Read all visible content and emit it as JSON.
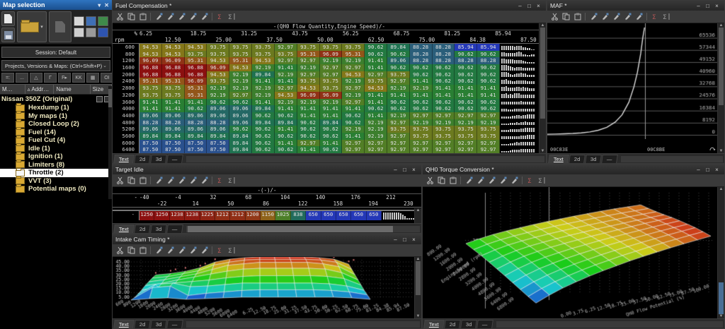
{
  "sidebar": {
    "title": "Map selection",
    "session": "Session: Default",
    "dropdown": "Projects, Versions & Maps:  (Ctrl+Shift+P)",
    "mini_buttons": [
      "=:",
      "...",
      "△",
      "Γ",
      "F▸",
      "KK",
      "▦",
      "OI"
    ],
    "columns": [
      "M…",
      "▵ Addr…",
      "Name",
      "Size"
    ],
    "tree_root": "Nissan 350Z (Original)",
    "tree_items": [
      {
        "label": "Hexdump (1)",
        "selected": false
      },
      {
        "label": "My maps (1)",
        "selected": false
      },
      {
        "label": "Closed Loop (2)",
        "selected": false
      },
      {
        "label": "Fuel (14)",
        "selected": false
      },
      {
        "label": "Fuel Cut (4)",
        "selected": false
      },
      {
        "label": "Idle (1)",
        "selected": false
      },
      {
        "label": "Ignition (1)",
        "selected": false
      },
      {
        "label": "Limiters (8)",
        "selected": false
      },
      {
        "label": "Throttle (2)",
        "selected": true
      },
      {
        "label": "VVT (3)",
        "selected": false
      },
      {
        "label": "Potential maps (0)",
        "selected": false
      }
    ]
  },
  "common": {
    "tabs": [
      "Text",
      "2d",
      "3d",
      "—"
    ],
    "window_controls": [
      "–",
      "□",
      "×"
    ],
    "toolbar_icons": [
      "cut-icon",
      "copy-icon",
      "paste-icon",
      "edit-pencil-1-icon",
      "edit-pencil-2-icon",
      "edit-pencil-3-icon",
      "edit-pencil-4-icon",
      "edit-pencil-5-icon",
      "sum-red-icon",
      "sum-icon"
    ]
  },
  "windows": {
    "fuel": {
      "title": "Fuel Compensation *"
    },
    "maf": {
      "title": "MAF *"
    },
    "idle": {
      "title": "Target Idle"
    },
    "cam": {
      "title": "Intake Cam Timing *"
    },
    "torque": {
      "title": "QH0 Torque Conversion *"
    }
  },
  "heat_stops": [
    [
      0,
      "#2438b8"
    ],
    [
      0.1,
      "#2a4a9a"
    ],
    [
      0.22,
      "#2a5f78"
    ],
    [
      0.34,
      "#1f7055"
    ],
    [
      0.48,
      "#237f35"
    ],
    [
      0.62,
      "#4a7f28"
    ],
    [
      0.72,
      "#6e7a1e"
    ],
    [
      0.8,
      "#8a7618"
    ],
    [
      0.88,
      "#95491a"
    ],
    [
      1,
      "#8c1010"
    ]
  ],
  "chart_data": [
    {
      "type": "heatmap",
      "title": "Fuel Compensation",
      "axis_title": "-(QH0 Flow Quantity,Engine Speed)/-",
      "unit_top": "%",
      "unit_bottom": "rpm",
      "cols": [
        "6.25",
        "12.50",
        "18.75",
        "25.00",
        "31.25",
        "37.50",
        "43.75",
        "50.00",
        "56.25",
        "62.50",
        "68.75",
        "75.00",
        "81.25",
        "84.38",
        "85.94",
        "87.50"
      ],
      "rows": [
        "600",
        "800",
        "1200",
        "1600",
        "2000",
        "2400",
        "2800",
        "3200",
        "3600",
        "4000",
        "4400",
        "4800",
        "5200",
        "5600",
        "6000",
        "6400"
      ],
      "vmin": 85.94,
      "vmax": 96.88,
      "values": [
        [
          94.53,
          94.53,
          94.53,
          93.75,
          93.75,
          93.75,
          92.97,
          93.75,
          93.75,
          93.75,
          90.62,
          89.84,
          88.28,
          88.28,
          85.94,
          85.94
        ],
        [
          94.53,
          94.53,
          93.75,
          93.75,
          93.75,
          93.75,
          93.75,
          95.31,
          96.09,
          95.31,
          90.62,
          90.62,
          88.28,
          88.28,
          90.62,
          90.62
        ],
        [
          96.09,
          96.09,
          95.31,
          94.53,
          95.31,
          94.53,
          92.97,
          92.97,
          92.19,
          92.19,
          91.41,
          89.06,
          88.28,
          88.28,
          88.28,
          88.28
        ],
        [
          96.88,
          96.88,
          96.88,
          96.09,
          94.53,
          92.19,
          91.41,
          92.19,
          92.97,
          92.97,
          91.41,
          90.62,
          90.62,
          90.62,
          90.62,
          90.62
        ],
        [
          96.88,
          96.88,
          96.88,
          94.53,
          92.19,
          89.84,
          92.19,
          92.97,
          92.97,
          94.53,
          92.97,
          93.75,
          90.62,
          90.62,
          90.62,
          90.62
        ],
        [
          95.31,
          95.31,
          96.09,
          93.75,
          92.19,
          91.41,
          91.41,
          93.75,
          93.75,
          92.19,
          93.75,
          92.97,
          91.41,
          90.62,
          90.62,
          90.62
        ],
        [
          93.75,
          93.75,
          95.31,
          92.19,
          92.19,
          92.19,
          92.97,
          94.53,
          93.75,
          92.97,
          94.53,
          92.19,
          92.19,
          91.41,
          91.41,
          91.41
        ],
        [
          93.75,
          93.75,
          95.31,
          92.19,
          92.97,
          92.19,
          94.53,
          96.09,
          96.09,
          92.19,
          91.41,
          91.41,
          91.41,
          91.41,
          91.41,
          91.41
        ],
        [
          91.41,
          91.41,
          91.41,
          90.62,
          90.62,
          91.41,
          92.19,
          92.19,
          92.19,
          92.97,
          91.41,
          90.62,
          90.62,
          90.62,
          90.62,
          90.62
        ],
        [
          91.41,
          91.41,
          90.62,
          89.06,
          89.06,
          89.84,
          91.41,
          91.41,
          91.41,
          91.41,
          90.62,
          90.62,
          90.62,
          90.62,
          90.62,
          90.62
        ],
        [
          89.06,
          89.06,
          89.06,
          89.06,
          89.06,
          90.62,
          90.62,
          91.41,
          91.41,
          90.62,
          91.41,
          92.19,
          92.97,
          92.97,
          92.97,
          92.97
        ],
        [
          88.28,
          88.28,
          88.28,
          88.28,
          89.06,
          89.84,
          89.84,
          90.62,
          89.84,
          90.62,
          92.19,
          92.97,
          92.19,
          92.19,
          92.19,
          92.19
        ],
        [
          89.06,
          89.06,
          89.06,
          89.06,
          90.62,
          90.62,
          91.41,
          90.62,
          90.62,
          92.19,
          92.19,
          93.75,
          93.75,
          93.75,
          93.75,
          93.75
        ],
        [
          89.84,
          89.84,
          89.84,
          89.84,
          89.84,
          90.62,
          90.62,
          90.62,
          90.62,
          91.41,
          92.19,
          92.97,
          93.75,
          93.75,
          93.75,
          93.75
        ],
        [
          87.5,
          87.5,
          87.5,
          87.5,
          89.84,
          90.62,
          91.41,
          92.97,
          91.41,
          92.97,
          92.97,
          92.97,
          92.97,
          92.97,
          92.97,
          92.97
        ],
        [
          87.5,
          87.5,
          87.5,
          87.5,
          89.84,
          90.62,
          90.62,
          91.41,
          90.62,
          92.97,
          92.97,
          92.97,
          92.97,
          92.97,
          92.97,
          92.97
        ]
      ]
    },
    {
      "type": "line",
      "title": "MAF",
      "y_ticks": [
        0,
        8192,
        16384,
        24576,
        32768,
        40960,
        49152,
        57344,
        65536
      ],
      "y_top": 72500,
      "x_labels": [
        "00C83E",
        "00C8BE"
      ],
      "cursor_x": 0.575,
      "points": [
        [
          0,
          400
        ],
        [
          0.05,
          520
        ],
        [
          0.1,
          680
        ],
        [
          0.15,
          920
        ],
        [
          0.2,
          1300
        ],
        [
          0.25,
          1950
        ],
        [
          0.3,
          3100
        ],
        [
          0.35,
          5100
        ],
        [
          0.4,
          8600
        ],
        [
          0.44,
          13500
        ],
        [
          0.48,
          22000
        ],
        [
          0.51,
          32500
        ],
        [
          0.53,
          42000
        ],
        [
          0.55,
          55000
        ],
        [
          0.562,
          65536
        ],
        [
          0.572,
          72500
        ]
      ]
    },
    {
      "type": "table",
      "title": "Target Idle",
      "axis_title": "-(-)/-",
      "unit": "-",
      "row_label": "-",
      "cols": [
        "-40",
        "-22",
        "-4",
        "14",
        "32",
        "50",
        "68",
        "86",
        "104",
        "122",
        "140",
        "158",
        "176",
        "194",
        "212",
        "230"
      ],
      "vmin": 650,
      "vmax": 1250,
      "values": [
        1250,
        1250,
        1238,
        1238,
        1225,
        1212,
        1212,
        1200,
        1150,
        1025,
        838,
        650,
        650,
        650,
        650,
        650
      ]
    },
    {
      "type": "surface",
      "title": "Intake Cam Timing",
      "z_ticks": [
        "45.00",
        "40.00",
        "35.00",
        "30.00",
        "25.00",
        "20.00",
        "15.00",
        "10.00",
        "5.00"
      ],
      "x_tick_labels": [
        "600",
        "800",
        "1200",
        "1600",
        "2000",
        "2400",
        "2800",
        "3200",
        "3600",
        "4000",
        "4400",
        "4800",
        "5200",
        "5600",
        "6000",
        "6400"
      ],
      "y_tick_labels": [
        "6.25",
        "12.50",
        "18.75",
        "25.00",
        "31.25",
        "37.50",
        "43.75",
        "50.00",
        "56.25",
        "62.50",
        "68.75",
        "75.00",
        "81.25",
        "84.38",
        "85.94",
        "87.50"
      ],
      "zmin": 0,
      "zmax": 46,
      "grid": [
        [
          1,
          3,
          4,
          2,
          3,
          4,
          5,
          5,
          5,
          5,
          5,
          5,
          4,
          2
        ],
        [
          2,
          16,
          18,
          5,
          8,
          10,
          12,
          13,
          13,
          13,
          13,
          12,
          10,
          6
        ],
        [
          5,
          18,
          20,
          15,
          16,
          18,
          20,
          20,
          20,
          20,
          20,
          19,
          16,
          10
        ],
        [
          8,
          12,
          18,
          20,
          22,
          25,
          27,
          28,
          28,
          28,
          28,
          27,
          24,
          15
        ],
        [
          12,
          15,
          20,
          24,
          28,
          32,
          35,
          36,
          36,
          36,
          36,
          35,
          30,
          20
        ],
        [
          15,
          18,
          22,
          26,
          32,
          38,
          40,
          42,
          42,
          42,
          42,
          40,
          36,
          25
        ],
        [
          18,
          20,
          24,
          28,
          36,
          40,
          43,
          44,
          44,
          44,
          44,
          43,
          40,
          30
        ],
        [
          20,
          22,
          25,
          30,
          38,
          42,
          44,
          45,
          45,
          45,
          45,
          44,
          42,
          35
        ]
      ]
    },
    {
      "type": "surface",
      "title": "QH0 Torque Conversion",
      "y_tick": "291",
      "depth_axis_label": "Engine Speed (rpm)",
      "x_axis_label": "QH0 Flow Potential (%)",
      "depth_tick_labels": [
        "800.00",
        "1200.00",
        "1600.00",
        "2000.00",
        "2400.00",
        "2800.00",
        "3200.00",
        "4000.00",
        "4800.00",
        "5600.00",
        "6400.00",
        "6800.00"
      ],
      "x_tick_labels": [
        "0.00",
        "3.75",
        "6.25",
        "12.50",
        "18.75",
        "25.00",
        "37.50",
        "50.00",
        "62.50",
        "75.00",
        "87.50",
        "100.00"
      ],
      "zmin": 30,
      "zmax": 270,
      "grid": [
        [
          150,
          165,
          178,
          188,
          196,
          204,
          211,
          217,
          223,
          228,
          233,
          237,
          240,
          243
        ],
        [
          140,
          158,
          172,
          183,
          192,
          200,
          208,
          214,
          220,
          226,
          231,
          236,
          240,
          244
        ],
        [
          130,
          150,
          166,
          178,
          188,
          197,
          205,
          212,
          219,
          225,
          231,
          237,
          242,
          247
        ],
        [
          118,
          140,
          158,
          172,
          183,
          193,
          202,
          210,
          218,
          225,
          232,
          239,
          245,
          251
        ],
        [
          105,
          130,
          150,
          165,
          178,
          189,
          199,
          209,
          217,
          226,
          234,
          242,
          249,
          256
        ],
        [
          92,
          118,
          140,
          157,
          171,
          184,
          195,
          206,
          216,
          225,
          234,
          243,
          251,
          259
        ],
        [
          78,
          106,
          129,
          147,
          163,
          177,
          190,
          202,
          213,
          223,
          233,
          243,
          252,
          261
        ],
        [
          64,
          93,
          117,
          137,
          154,
          169,
          184,
          197,
          209,
          221,
          232,
          243,
          253,
          263
        ],
        [
          50,
          80,
          105,
          126,
          145,
          162,
          177,
          192,
          205,
          218,
          230,
          241,
          252,
          262
        ],
        [
          38,
          68,
          94,
          116,
          136,
          154,
          170,
          186,
          200,
          213,
          226,
          238,
          249,
          260
        ]
      ]
    }
  ]
}
